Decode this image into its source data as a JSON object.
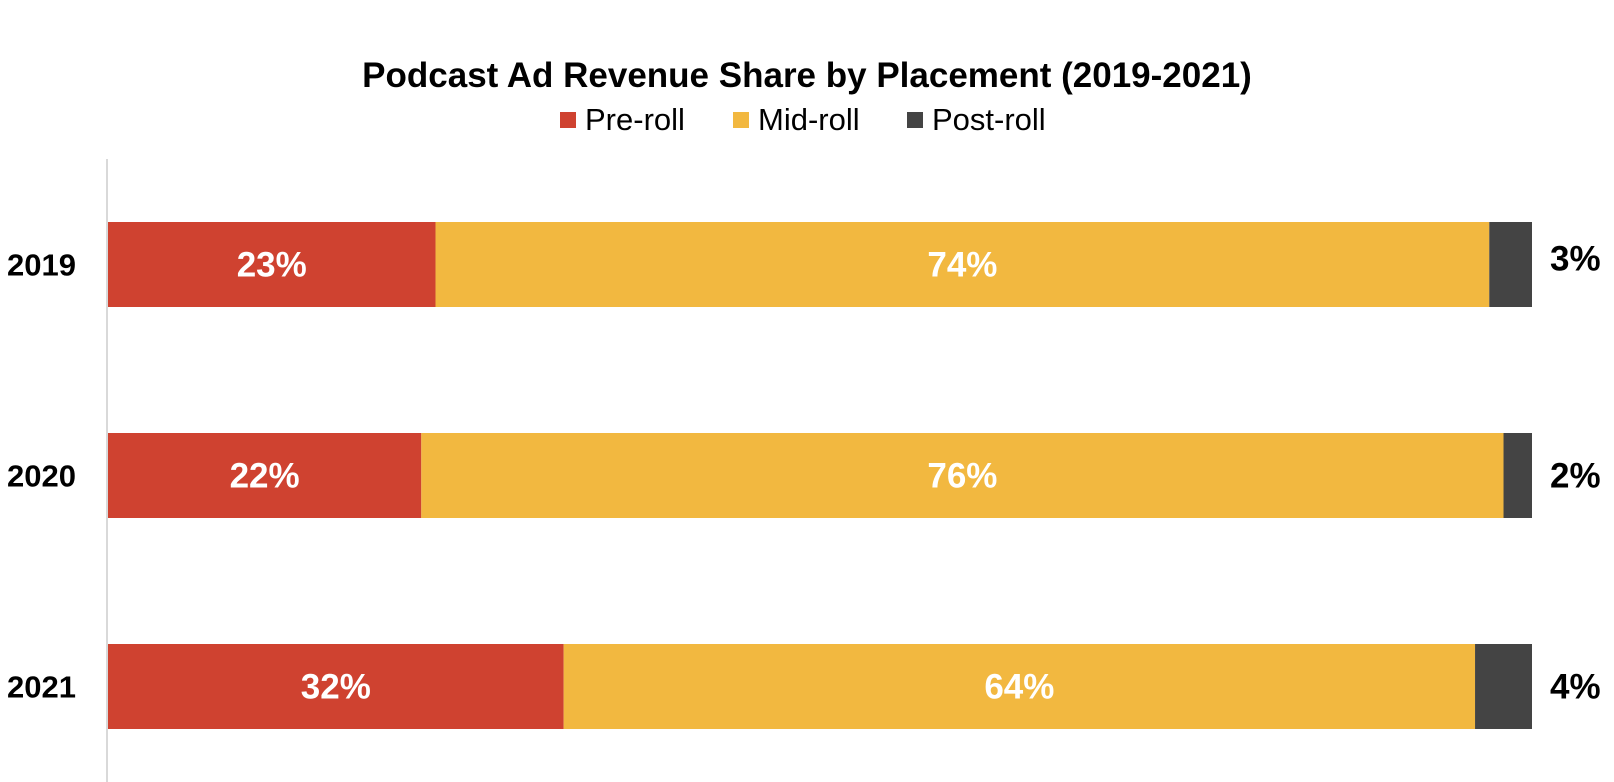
{
  "chart_data": {
    "type": "bar",
    "orientation": "horizontal",
    "stacked": true,
    "title": "Podcast Ad Revenue Share by Placement (2019-2021)",
    "xlabel": "",
    "ylabel": "",
    "xlim": [
      0,
      100
    ],
    "grid": false,
    "legend_position": "top-center",
    "categories": [
      "2019",
      "2020",
      "2021"
    ],
    "series": [
      {
        "name": "Pre-roll",
        "color": "#CF4230",
        "values": [
          23,
          22,
          32
        ],
        "labels": [
          "23%",
          "22%",
          "32%"
        ],
        "label_position": "inside"
      },
      {
        "name": "Mid-roll",
        "color": "#F2B840",
        "values": [
          74,
          76,
          64
        ],
        "labels": [
          "74%",
          "76%",
          "64%"
        ],
        "label_position": "inside"
      },
      {
        "name": "Post-roll",
        "color": "#444444",
        "values": [
          3,
          2,
          4
        ],
        "labels": [
          "3%",
          "2%",
          "4%"
        ],
        "label_position": "outside-right"
      }
    ]
  }
}
